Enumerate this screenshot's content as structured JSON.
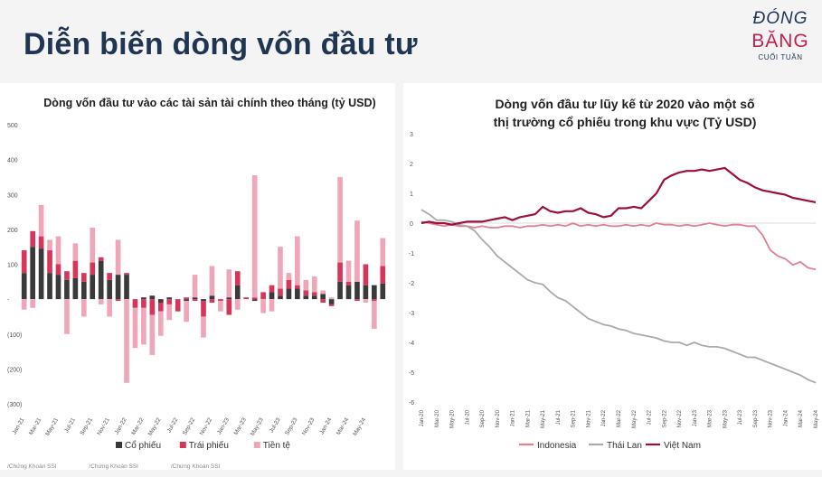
{
  "page": {
    "title": "Diễn biến dòng vốn đầu tư",
    "logo": {
      "line1": "ĐÓNG",
      "line2": "BĂNG",
      "line3": "CUỐI TUẦN"
    },
    "footer": [
      "/Chứng Khoán SSI",
      "/Chứng Khoán SSI",
      "/Chứng Khoán SSI"
    ]
  },
  "chart_data": [
    {
      "type": "bar",
      "stacked": true,
      "title": "Dòng vốn đầu tư vào các tài sản tài chính theo tháng (tỷ USD)",
      "y_ticks": [
        "500",
        "400",
        "300",
        "200",
        "100",
        "-",
        "(100)",
        "(200)",
        "(300)"
      ],
      "ylim": [
        -300,
        500
      ],
      "x_tick_labels": [
        "Jan-21",
        "Mar-21",
        "May-21",
        "Jul-21",
        "Sep-21",
        "Nov-21",
        "Jan-22",
        "Mar-22",
        "May-22",
        "Jul-22",
        "Sep-22",
        "Nov-22",
        "Jan-23",
        "Mar-23",
        "May-23",
        "Jul-23",
        "Sep-23",
        "Nov-23",
        "Jan-24",
        "Mar-24",
        "May-24"
      ],
      "legend": [
        "Cổ phiếu",
        "Trái phiếu",
        "Tiền tệ"
      ],
      "legend_position": "bottom",
      "colors": [
        "#3a3a3a",
        "#d6365a",
        "#efa6b8"
      ],
      "series": [
        {
          "name": "Cổ phiếu",
          "values": [
            75,
            150,
            145,
            75,
            70,
            55,
            60,
            50,
            70,
            110,
            55,
            70,
            70,
            0,
            5,
            10,
            -10,
            5,
            0,
            -5,
            5,
            -5,
            10,
            0,
            5,
            40,
            0,
            -5,
            0,
            20,
            10,
            30,
            30,
            10,
            10,
            15,
            -15,
            50,
            40,
            50,
            40,
            40,
            45
          ]
        },
        {
          "name": "Trái phiếu",
          "values": [
            65,
            45,
            35,
            65,
            30,
            25,
            50,
            25,
            35,
            10,
            20,
            -5,
            5,
            -25,
            -25,
            -45,
            -25,
            -15,
            -35,
            5,
            -5,
            -45,
            -10,
            -5,
            -45,
            40,
            5,
            5,
            20,
            20,
            20,
            25,
            10,
            15,
            10,
            -10,
            -5,
            55,
            10,
            -5,
            60,
            -5,
            50
          ]
        },
        {
          "name": "Tiền tệ",
          "values": [
            -30,
            -25,
            90,
            30,
            80,
            -100,
            50,
            -50,
            100,
            -15,
            -50,
            100,
            -240,
            -115,
            -105,
            -115,
            -70,
            -45,
            0,
            -60,
            65,
            -60,
            85,
            -30,
            80,
            -30,
            0,
            350,
            -40,
            -35,
            120,
            20,
            140,
            30,
            45,
            10,
            5,
            245,
            60,
            175,
            -10,
            -80,
            80
          ]
        }
      ]
    },
    {
      "type": "line",
      "title": "Dòng vốn đầu tư lũy kế từ 2020 vào một số thị trường cổ phiếu trong khu vực (Tỷ USD)",
      "y_ticks": [
        "3",
        "2",
        "1",
        "0",
        "-1",
        "-2",
        "-3",
        "-4",
        "-5",
        "-6"
      ],
      "ylim": [
        -6,
        3
      ],
      "x_tick_labels": [
        "Jan-20",
        "Mar-20",
        "May-20",
        "Jul-20",
        "Sep-20",
        "Nov-20",
        "Jan-21",
        "Mar-21",
        "May-21",
        "Jul-21",
        "Sep-21",
        "Nov-21",
        "Jan-22",
        "Mar-22",
        "May-22",
        "Jul-22",
        "Sep-22",
        "Nov-22",
        "Jan-23",
        "Mar-23",
        "May-23",
        "Jul-23",
        "Sep-23",
        "Nov-23",
        "Jan-24",
        "Mar-24",
        "May-24"
      ],
      "legend": [
        "Indonesia",
        "Thái Lan",
        "Việt Nam"
      ],
      "legend_position": "bottom",
      "colors": [
        "#e07f95",
        "#aaaaaa",
        "#9c0f3a"
      ],
      "series": [
        {
          "name": "Indonesia",
          "values": [
            0.05,
            0,
            -0.05,
            -0.1,
            -0.05,
            -0.1,
            -0.1,
            -0.15,
            -0.1,
            -0.15,
            -0.15,
            -0.1,
            -0.1,
            -0.15,
            -0.1,
            -0.1,
            -0.05,
            -0.1,
            -0.05,
            -0.1,
            0.0,
            -0.1,
            -0.05,
            -0.1,
            -0.05,
            -0.1,
            -0.1,
            -0.05,
            -0.1,
            -0.05,
            -0.1,
            0.0,
            -0.05,
            -0.05,
            -0.1,
            -0.05,
            -0.1,
            -0.05,
            0.0,
            -0.05,
            -0.1,
            -0.05,
            -0.05,
            -0.1,
            -0.1,
            -0.4,
            -0.9,
            -1.1,
            -1.2,
            -1.4,
            -1.3,
            -1.5,
            -1.55
          ]
        },
        {
          "name": "Thái Lan",
          "values": [
            0.45,
            0.3,
            0.1,
            0.1,
            0.05,
            -0.05,
            -0.1,
            -0.25,
            -0.55,
            -0.8,
            -1.1,
            -1.3,
            -1.5,
            -1.7,
            -1.9,
            -2.0,
            -2.05,
            -2.3,
            -2.5,
            -2.6,
            -2.8,
            -3.0,
            -3.2,
            -3.3,
            -3.4,
            -3.45,
            -3.55,
            -3.6,
            -3.7,
            -3.75,
            -3.8,
            -3.85,
            -3.95,
            -4.0,
            -4.0,
            -4.1,
            -4.0,
            -4.1,
            -4.15,
            -4.15,
            -4.2,
            -4.3,
            -4.4,
            -4.5,
            -4.5,
            -4.6,
            -4.7,
            -4.8,
            -4.9,
            -5.0,
            -5.1,
            -5.25,
            -5.35
          ]
        },
        {
          "name": "Việt Nam",
          "values": [
            0.0,
            0.05,
            0.0,
            0.0,
            -0.05,
            0.0,
            0.05,
            0.05,
            0.05,
            0.1,
            0.15,
            0.2,
            0.1,
            0.2,
            0.25,
            0.3,
            0.55,
            0.4,
            0.35,
            0.4,
            0.4,
            0.5,
            0.35,
            0.3,
            0.2,
            0.25,
            0.5,
            0.5,
            0.55,
            0.5,
            0.75,
            1.0,
            1.45,
            1.6,
            1.7,
            1.75,
            1.75,
            1.8,
            1.75,
            1.8,
            1.85,
            1.65,
            1.45,
            1.35,
            1.2,
            1.1,
            1.05,
            1.0,
            0.95,
            0.85,
            0.8,
            0.75,
            0.7
          ]
        }
      ]
    }
  ]
}
